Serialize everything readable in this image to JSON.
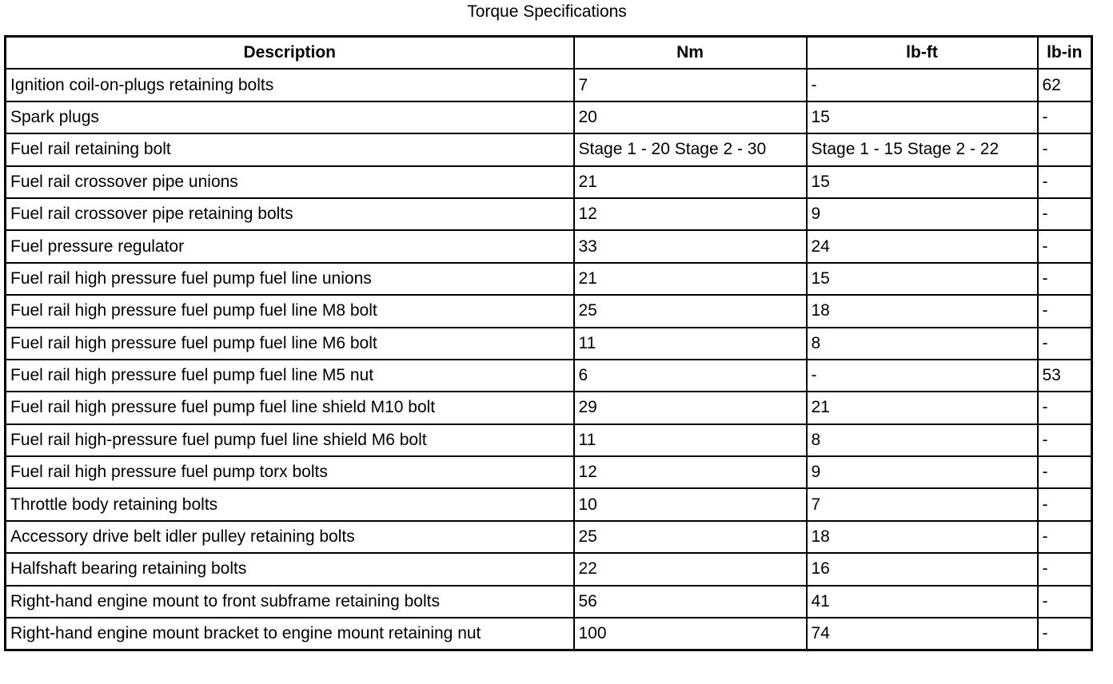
{
  "title": "Torque Specifications",
  "headers": [
    "Description",
    "Nm",
    "lb-ft",
    "lb-in"
  ],
  "rows": [
    [
      "Ignition coil-on-plugs retaining bolts",
      "7",
      "-",
      "62"
    ],
    [
      "Spark plugs",
      "20",
      "15",
      "-"
    ],
    [
      "Fuel rail retaining bolt",
      "Stage 1 - 20 Stage 2 - 30",
      "Stage 1 - 15 Stage 2 - 22",
      "-"
    ],
    [
      "Fuel rail crossover pipe unions",
      "21",
      "15",
      "-"
    ],
    [
      "Fuel rail crossover pipe retaining bolts",
      "12",
      "9",
      "-"
    ],
    [
      "Fuel pressure regulator",
      "33",
      "24",
      "-"
    ],
    [
      "Fuel rail high pressure fuel pump fuel line unions",
      "21",
      "15",
      "-"
    ],
    [
      "Fuel rail high pressure fuel pump fuel line M8 bolt",
      "25",
      "18",
      "-"
    ],
    [
      "Fuel rail high pressure fuel pump fuel line M6 bolt",
      "11",
      "8",
      "-"
    ],
    [
      "Fuel rail high pressure fuel pump fuel line M5 nut",
      "6",
      "-",
      "53"
    ],
    [
      "Fuel rail high pressure fuel pump fuel line shield M10 bolt",
      "29",
      "21",
      "-"
    ],
    [
      "Fuel rail high-pressure fuel pump fuel line shield M6 bolt",
      "11",
      "8",
      "-"
    ],
    [
      "Fuel rail high pressure fuel pump torx bolts",
      "12",
      "9",
      "-"
    ],
    [
      "Throttle body retaining bolts",
      "10",
      "7",
      "-"
    ],
    [
      "Accessory drive belt idler pulley retaining bolts",
      "25",
      "18",
      "-"
    ],
    [
      "Halfshaft bearing retaining bolts",
      "22",
      "16",
      "-"
    ],
    [
      "Right-hand engine mount to front subframe retaining bolts",
      "56",
      "41",
      "-"
    ],
    [
      "Right-hand engine mount bracket to engine mount retaining nut",
      "100",
      "74",
      "-"
    ]
  ]
}
